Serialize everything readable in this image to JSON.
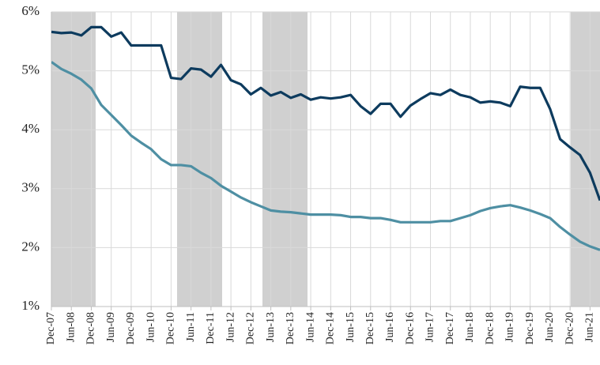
{
  "chart_data": {
    "type": "line",
    "categories": [
      "Dec-07",
      null,
      "Jun-08",
      null,
      "Dec-08",
      null,
      "Jun-09",
      null,
      "Dec-09",
      null,
      "Jun-10",
      null,
      "Dec-10",
      null,
      "Jun-11",
      null,
      "Dec-11",
      null,
      "Jun-12",
      null,
      "Dec-12",
      null,
      "Jun-13",
      null,
      "Dec-13",
      null,
      "Jun-14",
      null,
      "Dec-14",
      null,
      "Jun-15",
      null,
      "Dec-15",
      null,
      "Jun-16",
      null,
      "Dec-16",
      null,
      "Jun-17",
      null,
      "Dec-17",
      null,
      "Jun-18",
      null,
      "Dec-18",
      null,
      "Jun-19",
      null,
      "Dec-19",
      null,
      "Jun-20",
      null,
      "Dec-20",
      null,
      "Jun-21",
      null
    ],
    "series": [
      {
        "color": "#0d3b5e",
        "values": [
          5.66,
          5.64,
          5.65,
          5.6,
          5.74,
          5.74,
          5.58,
          5.65,
          5.43,
          5.43,
          5.43,
          5.43,
          4.88,
          4.86,
          5.04,
          5.02,
          4.9,
          5.1,
          4.84,
          4.77,
          4.6,
          4.71,
          4.58,
          4.64,
          4.54,
          4.6,
          4.51,
          4.55,
          4.53,
          4.55,
          4.59,
          4.4,
          4.27,
          4.44,
          4.44,
          4.22,
          4.41,
          4.52,
          4.62,
          4.59,
          4.68,
          4.59,
          4.55,
          4.46,
          4.48,
          4.46,
          4.4,
          4.73,
          4.71,
          4.71,
          4.35,
          3.84,
          3.7,
          3.57,
          3.27,
          2.8
        ]
      },
      {
        "color": "#4e8fa3",
        "values": [
          5.15,
          5.03,
          4.95,
          4.85,
          4.7,
          4.42,
          4.25,
          4.08,
          3.9,
          3.78,
          3.67,
          3.5,
          3.4,
          3.4,
          3.38,
          3.27,
          3.18,
          3.05,
          2.95,
          2.85,
          2.77,
          2.7,
          2.63,
          2.61,
          2.6,
          2.58,
          2.56,
          2.56,
          2.56,
          2.55,
          2.52,
          2.52,
          2.5,
          2.5,
          2.47,
          2.43,
          2.43,
          2.43,
          2.43,
          2.45,
          2.45,
          2.5,
          2.55,
          2.62,
          2.67,
          2.7,
          2.72,
          2.68,
          2.63,
          2.57,
          2.5,
          2.35,
          2.22,
          2.1,
          2.02,
          1.96
        ]
      }
    ],
    "ylim": [
      1,
      6
    ],
    "yticks": [
      {
        "value": 1,
        "label": "1%"
      },
      {
        "value": 2,
        "label": "2%"
      },
      {
        "value": 3,
        "label": "3%"
      },
      {
        "value": 4,
        "label": "4%"
      },
      {
        "value": 5,
        "label": "5%"
      },
      {
        "value": 6,
        "label": "6%"
      }
    ],
    "grid": true
  }
}
